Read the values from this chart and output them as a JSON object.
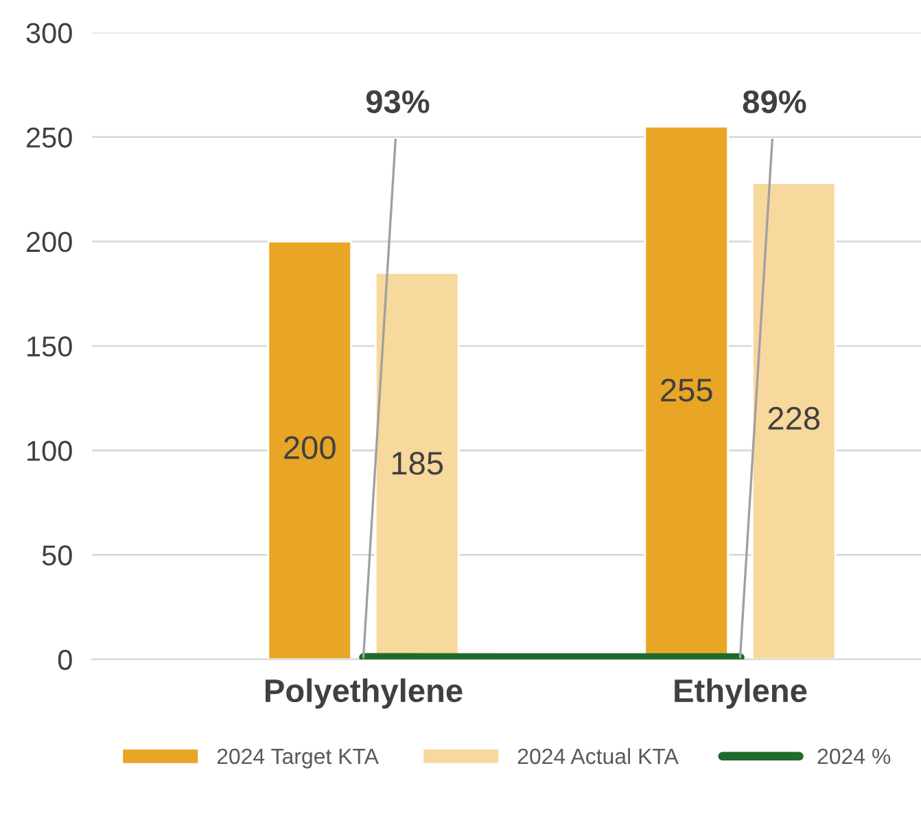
{
  "chart_data": {
    "type": "bar",
    "categories": [
      "Polyethylene",
      "Ethylene"
    ],
    "series": [
      {
        "name": "2024 Target KTA",
        "color": "#e9a526",
        "values": [
          200,
          255
        ],
        "value_labels": [
          "200",
          "255"
        ]
      },
      {
        "name": "2024 Actual KTA",
        "color": "#f7d89d",
        "values": [
          185,
          228
        ],
        "value_labels": [
          "185",
          "228"
        ]
      },
      {
        "name": "2024 %",
        "type": "line",
        "color": "#1e6b2a",
        "values": [
          0.93,
          0.89
        ],
        "value_labels": [
          "93%",
          "89%"
        ]
      }
    ],
    "ylim": [
      0,
      300
    ],
    "yticks": [
      0,
      50,
      100,
      150,
      200,
      250,
      300
    ],
    "grid": "y",
    "legend": "bottom"
  }
}
